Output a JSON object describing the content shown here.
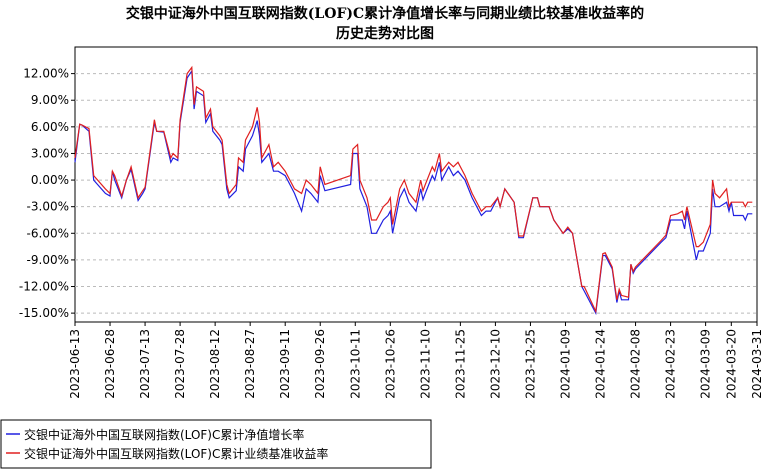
{
  "chart_data": {
    "type": "line",
    "title": [
      "交银中证海外中国互联网指数(LOF)C累计净值增长率与同期业绩比较基准收益率的",
      "历史走势对比图"
    ],
    "x": [
      "2023-06-13",
      "2023-06-15",
      "2023-06-16",
      "2023-06-19",
      "2023-06-21",
      "2023-06-26",
      "2023-06-28",
      "2023-06-29",
      "2023-06-30",
      "2023-07-03",
      "2023-07-05",
      "2023-07-07",
      "2023-07-10",
      "2023-07-12",
      "2023-07-13",
      "2023-07-17",
      "2023-07-18",
      "2023-07-21",
      "2023-07-24",
      "2023-07-25",
      "2023-07-27",
      "2023-07-28",
      "2023-07-31",
      "2023-08-02",
      "2023-08-03",
      "2023-08-04",
      "2023-08-07",
      "2023-08-08",
      "2023-08-10",
      "2023-08-11",
      "2023-08-14",
      "2023-08-15",
      "2023-08-17",
      "2023-08-18",
      "2023-08-21",
      "2023-08-22",
      "2023-08-24",
      "2023-08-25",
      "2023-08-28",
      "2023-08-30",
      "2023-08-31",
      "2023-09-01",
      "2023-09-04",
      "2023-09-06",
      "2023-09-08",
      "2023-09-11",
      "2023-09-13",
      "2023-09-15",
      "2023-09-18",
      "2023-09-20",
      "2023-09-22",
      "2023-09-25",
      "2023-09-26",
      "2023-09-28",
      "2023-10-09",
      "2023-10-10",
      "2023-10-12",
      "2023-10-13",
      "2023-10-16",
      "2023-10-18",
      "2023-10-20",
      "2023-10-23",
      "2023-10-25",
      "2023-10-26",
      "2023-10-27",
      "2023-10-30",
      "2023-11-01",
      "2023-11-03",
      "2023-11-06",
      "2023-11-08",
      "2023-11-09",
      "2023-11-10",
      "2023-11-13",
      "2023-11-14",
      "2023-11-16",
      "2023-11-17",
      "2023-11-20",
      "2023-11-22",
      "2023-11-24",
      "2023-11-27",
      "2023-11-30",
      "2023-12-04",
      "2023-12-06",
      "2023-12-08",
      "2023-12-11",
      "2023-12-12",
      "2023-12-14",
      "2023-12-18",
      "2023-12-20",
      "2023-12-22",
      "2023-12-26",
      "2023-12-28",
      "2023-12-29",
      "2024-01-02",
      "2024-01-04",
      "2024-01-08",
      "2024-01-10",
      "2024-01-12",
      "2024-01-16",
      "2024-01-17",
      "2024-01-22",
      "2024-01-25",
      "2024-01-26",
      "2024-01-29",
      "2024-01-31",
      "2024-02-01",
      "2024-02-02",
      "2024-02-05",
      "2024-02-06",
      "2024-02-07",
      "2024-02-08",
      "2024-02-19",
      "2024-02-21",
      "2024-02-23",
      "2024-02-26",
      "2024-02-28",
      "2024-02-29",
      "2024-03-01",
      "2024-03-05",
      "2024-03-06",
      "2024-03-08",
      "2024-03-11",
      "2024-03-12",
      "2024-03-13",
      "2024-03-15",
      "2024-03-18",
      "2024-03-19",
      "2024-03-20",
      "2024-03-21",
      "2024-03-25",
      "2024-03-26",
      "2024-03-27",
      "2024-03-29"
    ],
    "series": [
      {
        "name": "交银中证海外中国互联网指数(LOF)C累计净值增长率",
        "color": "#2020e0",
        "values": [
          2,
          6.3,
          6.2,
          5.5,
          0,
          -1.5,
          -1.8,
          1,
          0,
          -2,
          0,
          1.2,
          -2.3,
          -1.5,
          -1,
          6.5,
          5.5,
          5.4,
          2,
          2.5,
          2.2,
          6.5,
          11.5,
          12.3,
          8,
          10,
          9.5,
          6.5,
          7.5,
          5.5,
          4.5,
          4,
          -1,
          -2,
          -1.2,
          1.5,
          1,
          3.5,
          5,
          6.7,
          5,
          2,
          3,
          1,
          1,
          0.5,
          -0.5,
          -1.5,
          -3.5,
          -1,
          -1.5,
          -2.5,
          0.5,
          -1.2,
          -0.5,
          3,
          3,
          -1,
          -3,
          -6,
          -6,
          -4.5,
          -4,
          -3.5,
          -6,
          -2,
          -1,
          -2.5,
          -3.5,
          -1,
          -2.2,
          -1.5,
          0.5,
          0,
          2,
          0,
          1.5,
          0.5,
          1,
          0,
          -2,
          -4,
          -3.5,
          -3.5,
          -2,
          -3,
          -1,
          -2.5,
          -6.5,
          -6.5,
          -2,
          -2,
          -3,
          -3,
          -4.5,
          -6,
          -5.5,
          -6,
          -12,
          -12.5,
          -15,
          -8.5,
          -8.5,
          -10,
          -13.8,
          -12.5,
          -13.5,
          -13.5,
          -9.5,
          -10.5,
          -10,
          -7,
          -6.5,
          -4.5,
          -4.5,
          -4.5,
          -5.5,
          -3.5,
          -9,
          -8,
          -8,
          -6,
          -1,
          -3,
          -3,
          -2.5,
          -3.5,
          -2.5,
          -4,
          -4,
          -4.5,
          -3.8,
          -3.8
        ]
      },
      {
        "name": "交银中证海外中国互联网指数(LOF)C累计业绩基准收益率",
        "color": "#e02020",
        "values": [
          2.5,
          6.3,
          6.2,
          5.8,
          0.5,
          -1,
          -1.5,
          1,
          0.5,
          -1.8,
          0,
          1.5,
          -2,
          -1.2,
          -0.8,
          6.8,
          5.5,
          5.5,
          2.5,
          3,
          2.5,
          6.8,
          12,
          12.7,
          8.5,
          10.5,
          10,
          7,
          8,
          6,
          5,
          4.5,
          -0.5,
          -1.5,
          -0.5,
          2.5,
          2,
          4.5,
          6,
          8.2,
          6.5,
          2.5,
          4,
          1.5,
          2,
          1,
          0,
          -1,
          -1.5,
          0,
          -0.5,
          -1.5,
          1.5,
          -0.5,
          0.5,
          3.5,
          4,
          0,
          -2,
          -4.5,
          -4.5,
          -3,
          -2.5,
          -2,
          -5,
          -1,
          0,
          -1.5,
          -2.5,
          0,
          -1.2,
          -0.5,
          1.5,
          1,
          3,
          1,
          2,
          1.5,
          2,
          0.5,
          -1.5,
          -3.5,
          -3,
          -3,
          -2,
          -3,
          -1,
          -2.5,
          -6.3,
          -6.3,
          -2,
          -2,
          -3,
          -3,
          -4.5,
          -6,
          -5.3,
          -6,
          -12,
          -12,
          -14.8,
          -8.3,
          -8.2,
          -9.8,
          -13.5,
          -12.3,
          -13,
          -13.2,
          -9.5,
          -10.3,
          -9.8,
          -6.8,
          -6.2,
          -4,
          -3.8,
          -3.5,
          -4.5,
          -3,
          -7.5,
          -7.5,
          -7,
          -5,
          0,
          -1.5,
          -2,
          -1,
          -3,
          -2.5,
          -2.5,
          -2.5,
          -3,
          -2.5,
          -2.5
        ]
      }
    ],
    "xlim": [
      "2023-06-13",
      "2024-03-31"
    ],
    "xticks": [
      "2023-06-13",
      "2023-06-28",
      "2023-07-13",
      "2023-07-28",
      "2023-08-12",
      "2023-08-27",
      "2023-09-11",
      "2023-09-26",
      "2023-10-11",
      "2023-10-26",
      "2023-11-10",
      "2023-11-25",
      "2023-12-10",
      "2023-12-25",
      "2024-01-09",
      "2024-01-24",
      "2024-02-08",
      "2024-02-23",
      "2024-03-09",
      "2024-03-20",
      "2024-03-31"
    ],
    "ylim": [
      -16,
      15
    ],
    "yticks": [
      {
        "value": 12,
        "label": "12.00%"
      },
      {
        "value": 9,
        "label": "9.00%"
      },
      {
        "value": 6,
        "label": "6.00%"
      },
      {
        "value": 3,
        "label": "3.00%"
      },
      {
        "value": 0,
        "label": "0.00%"
      },
      {
        "value": -3,
        "label": "-3.00%"
      },
      {
        "value": -6,
        "label": "-6.00%"
      },
      {
        "value": -9,
        "label": "-9.00%"
      },
      {
        "value": -12,
        "label": "-12.00%"
      },
      {
        "value": -15,
        "label": "-15.00%"
      }
    ],
    "grid": true,
    "legend": "bottom-left"
  }
}
